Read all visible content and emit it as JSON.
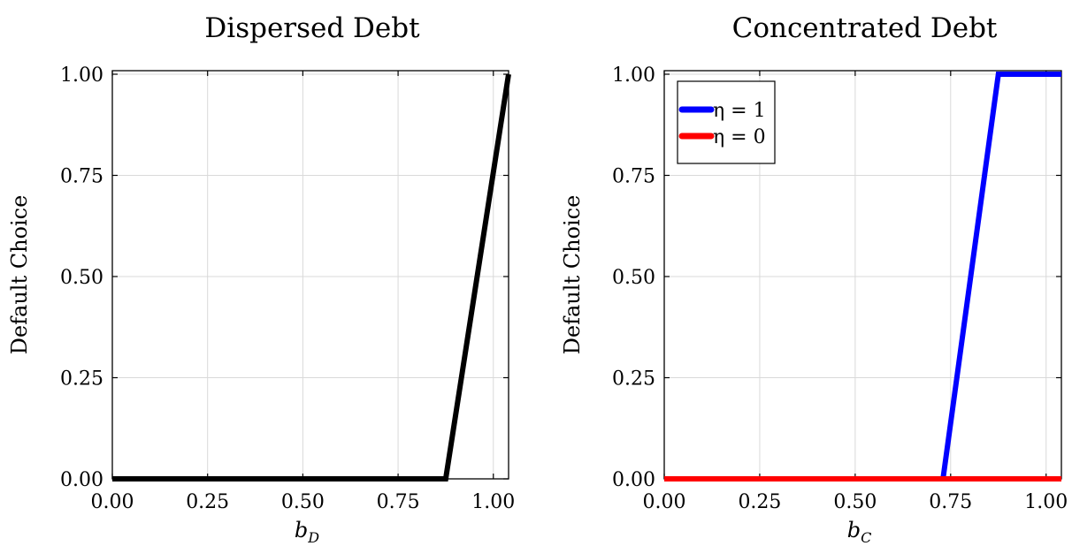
{
  "chart_data": [
    {
      "type": "line",
      "title": "Dispersed Debt",
      "ylabel": "Default Choice",
      "xlabel": "b",
      "xlabel_sub": "D",
      "xlim": [
        0,
        1.04
      ],
      "ylim": [
        0,
        1.0
      ],
      "xticks": [
        "0.00",
        "0.25",
        "0.50",
        "0.75",
        "1.00"
      ],
      "yticks": [
        "0.00",
        "0.25",
        "0.50",
        "0.75",
        "1.00"
      ],
      "grid": true,
      "legend": null,
      "series": [
        {
          "color": "#000000",
          "x": [
            0,
            0.875,
            1.04
          ],
          "y": [
            0,
            0,
            1
          ]
        }
      ]
    },
    {
      "type": "line",
      "title": "Concentrated Debt",
      "ylabel": "Default Choice",
      "xlabel": "b",
      "xlabel_sub": "C",
      "xlim": [
        0,
        1.04
      ],
      "ylim": [
        0,
        1.0
      ],
      "xticks": [
        "0.00",
        "0.25",
        "0.50",
        "0.75",
        "1.00"
      ],
      "yticks": [
        "0.00",
        "0.25",
        "0.50",
        "0.75",
        "1.00"
      ],
      "grid": true,
      "legend": "top-left",
      "series": [
        {
          "name": "η = 1",
          "color": "#0000ff",
          "x": [
            0,
            0.73,
            0.73,
            0.875,
            1.04
          ],
          "y": [
            0,
            0,
            0,
            1,
            1
          ]
        },
        {
          "name": "η = 0",
          "color": "#ff0000",
          "x": [
            0,
            1.04
          ],
          "y": [
            0,
            0
          ]
        }
      ]
    }
  ]
}
